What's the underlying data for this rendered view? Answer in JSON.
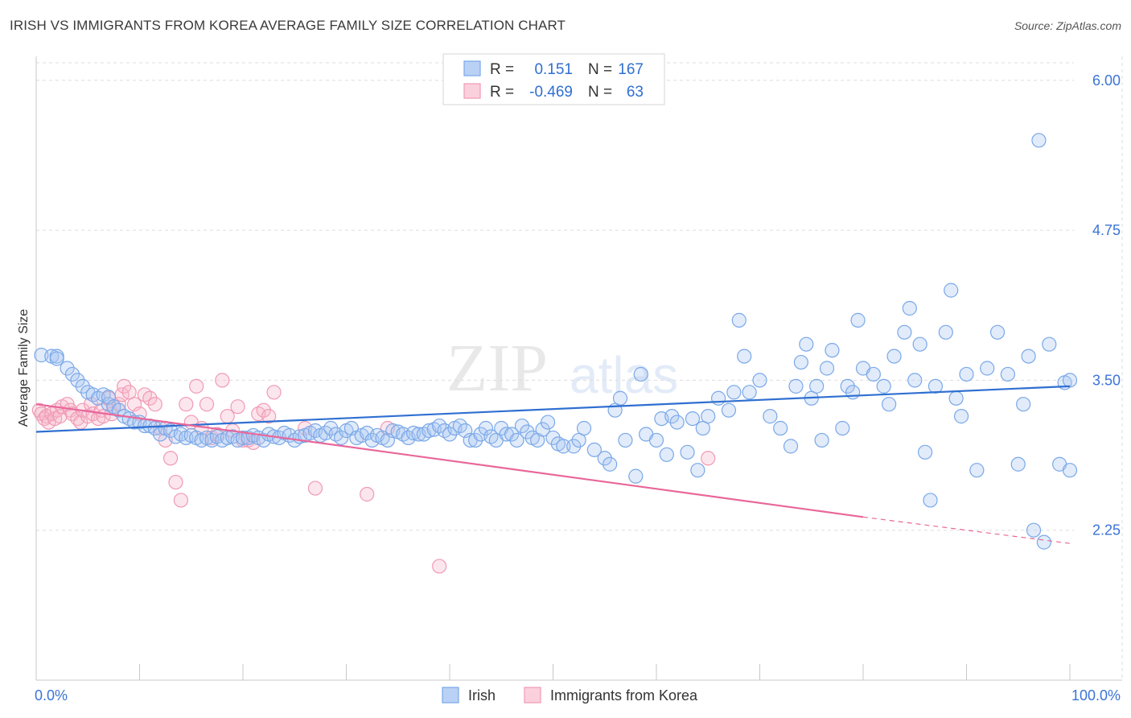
{
  "header": {
    "title": "IRISH VS IMMIGRANTS FROM KOREA AVERAGE FAMILY SIZE CORRELATION CHART",
    "source": "Source: ZipAtlas.com"
  },
  "watermark": {
    "zip": "ZIP",
    "atlas": "atlas"
  },
  "legend_stats": {
    "rows": [
      {
        "r_label": "R =",
        "r_value": "0.151",
        "n_label": "N =",
        "n_value": "167",
        "color": "#7aa8e8"
      },
      {
        "r_label": "R =",
        "r_value": "-0.469",
        "n_label": "N =",
        "n_value": "63",
        "color": "#f09ab5"
      }
    ]
  },
  "bottom_legend": {
    "irish": "Irish",
    "korea": "Immigrants from Korea"
  },
  "chart_data": {
    "type": "scatter",
    "title": "IRISH VS IMMIGRANTS FROM KOREA AVERAGE FAMILY SIZE CORRELATION CHART",
    "ylabel": "Average Family Size",
    "xlabel": "",
    "x_tick_labels": [
      "0.0%",
      "100.0%"
    ],
    "y_tick_labels": [
      "2.25",
      "3.50",
      "4.75",
      "6.00"
    ],
    "y_ticks": [
      2.25,
      3.5,
      4.75,
      6.0
    ],
    "xlim": [
      0,
      100
    ],
    "ylim": [
      1.0,
      6.2
    ],
    "grid": true,
    "legend_placement": "bottom-center",
    "series": [
      {
        "name": "Irish",
        "color": "#7aa8e8",
        "line_color": "#2f6fd1",
        "r": 0.151,
        "n": 167,
        "trend": {
          "x0": 0,
          "y0": 3.07,
          "x1": 100,
          "y1": 3.45
        },
        "points": [
          [
            0.5,
            3.71
          ],
          [
            1.5,
            3.7
          ],
          [
            2,
            3.7
          ],
          [
            2,
            3.68
          ],
          [
            3,
            3.6
          ],
          [
            3.5,
            3.55
          ],
          [
            4,
            3.5
          ],
          [
            4.5,
            3.45
          ],
          [
            5,
            3.4
          ],
          [
            5.5,
            3.38
          ],
          [
            6,
            3.35
          ],
          [
            6.5,
            3.38
          ],
          [
            7,
            3.3
          ],
          [
            7,
            3.36
          ],
          [
            7.5,
            3.28
          ],
          [
            8,
            3.25
          ],
          [
            8.5,
            3.2
          ],
          [
            9,
            3.18
          ],
          [
            9.5,
            3.15
          ],
          [
            10,
            3.15
          ],
          [
            10.5,
            3.12
          ],
          [
            11,
            3.12
          ],
          [
            11.5,
            3.1
          ],
          [
            12,
            3.05
          ],
          [
            12.5,
            3.1
          ],
          [
            13,
            3.08
          ],
          [
            13.5,
            3.03
          ],
          [
            14,
            3.05
          ],
          [
            14.5,
            3.02
          ],
          [
            15,
            3.04
          ],
          [
            15.5,
            3.02
          ],
          [
            16,
            3.0
          ],
          [
            16.5,
            3.02
          ],
          [
            17,
            3.0
          ],
          [
            17.5,
            3.03
          ],
          [
            18,
            3.0
          ],
          [
            18.5,
            3.02
          ],
          [
            19,
            3.03
          ],
          [
            19.5,
            3.0
          ],
          [
            20,
            3.02
          ],
          [
            20.5,
            3.02
          ],
          [
            21,
            3.04
          ],
          [
            21.5,
            3.02
          ],
          [
            22,
            3.0
          ],
          [
            22.5,
            3.05
          ],
          [
            23,
            3.03
          ],
          [
            23.5,
            3.02
          ],
          [
            24,
            3.06
          ],
          [
            24.5,
            3.04
          ],
          [
            25,
            3.0
          ],
          [
            25.5,
            3.03
          ],
          [
            26,
            3.04
          ],
          [
            26.5,
            3.06
          ],
          [
            27,
            3.08
          ],
          [
            27.5,
            3.04
          ],
          [
            28,
            3.06
          ],
          [
            28.5,
            3.1
          ],
          [
            29,
            3.05
          ],
          [
            29.5,
            3.02
          ],
          [
            30,
            3.08
          ],
          [
            30.5,
            3.1
          ],
          [
            31,
            3.02
          ],
          [
            31.5,
            3.04
          ],
          [
            32,
            3.06
          ],
          [
            32.5,
            3.0
          ],
          [
            33,
            3.04
          ],
          [
            33.5,
            3.02
          ],
          [
            34,
            3.0
          ],
          [
            34.5,
            3.08
          ],
          [
            35,
            3.07
          ],
          [
            35.5,
            3.05
          ],
          [
            36,
            3.02
          ],
          [
            36.5,
            3.06
          ],
          [
            37,
            3.05
          ],
          [
            37.5,
            3.05
          ],
          [
            38,
            3.08
          ],
          [
            38.5,
            3.09
          ],
          [
            39,
            3.12
          ],
          [
            39.5,
            3.08
          ],
          [
            40,
            3.05
          ],
          [
            40.5,
            3.1
          ],
          [
            41,
            3.12
          ],
          [
            41.5,
            3.08
          ],
          [
            42,
            3.0
          ],
          [
            42.5,
            3.0
          ],
          [
            43,
            3.05
          ],
          [
            43.5,
            3.1
          ],
          [
            44,
            3.03
          ],
          [
            44.5,
            3.0
          ],
          [
            45,
            3.1
          ],
          [
            45.5,
            3.05
          ],
          [
            46,
            3.05
          ],
          [
            46.5,
            3.0
          ],
          [
            47,
            3.12
          ],
          [
            47.5,
            3.07
          ],
          [
            48,
            3.02
          ],
          [
            48.5,
            3.0
          ],
          [
            49,
            3.09
          ],
          [
            49.5,
            3.15
          ],
          [
            50,
            3.02
          ],
          [
            50.5,
            2.97
          ],
          [
            51,
            2.95
          ],
          [
            52,
            2.95
          ],
          [
            52.5,
            3.0
          ],
          [
            53,
            3.1
          ],
          [
            54,
            2.92
          ],
          [
            55,
            2.85
          ],
          [
            55.5,
            2.8
          ],
          [
            56,
            3.25
          ],
          [
            56.5,
            3.35
          ],
          [
            57,
            3.0
          ],
          [
            58,
            2.7
          ],
          [
            58.5,
            3.55
          ],
          [
            59,
            3.05
          ],
          [
            60,
            3.0
          ],
          [
            60.5,
            3.18
          ],
          [
            61,
            2.88
          ],
          [
            61.5,
            3.2
          ],
          [
            62,
            3.15
          ],
          [
            63,
            2.9
          ],
          [
            63.5,
            3.18
          ],
          [
            64,
            2.75
          ],
          [
            64.5,
            3.1
          ],
          [
            65,
            3.2
          ],
          [
            66,
            3.35
          ],
          [
            67,
            3.25
          ],
          [
            67.5,
            3.4
          ],
          [
            68,
            4.0
          ],
          [
            68.5,
            3.7
          ],
          [
            69,
            3.4
          ],
          [
            70,
            3.5
          ],
          [
            71,
            3.2
          ],
          [
            72,
            3.1
          ],
          [
            73,
            2.95
          ],
          [
            73.5,
            3.45
          ],
          [
            74,
            3.65
          ],
          [
            74.5,
            3.8
          ],
          [
            75,
            3.35
          ],
          [
            75.5,
            3.45
          ],
          [
            76,
            3.0
          ],
          [
            76.5,
            3.6
          ],
          [
            77,
            3.75
          ],
          [
            78,
            3.1
          ],
          [
            78.5,
            3.45
          ],
          [
            79,
            3.4
          ],
          [
            79.5,
            4.0
          ],
          [
            80,
            3.6
          ],
          [
            81,
            3.55
          ],
          [
            82,
            3.45
          ],
          [
            82.5,
            3.3
          ],
          [
            83,
            3.7
          ],
          [
            84,
            3.9
          ],
          [
            84.5,
            4.1
          ],
          [
            85,
            3.5
          ],
          [
            85.5,
            3.8
          ],
          [
            86,
            2.9
          ],
          [
            86.5,
            2.5
          ],
          [
            87,
            3.45
          ],
          [
            88,
            3.9
          ],
          [
            88.5,
            4.25
          ],
          [
            89,
            3.35
          ],
          [
            89.5,
            3.2
          ],
          [
            90,
            3.55
          ],
          [
            91,
            2.75
          ],
          [
            92,
            3.6
          ],
          [
            93,
            3.9
          ],
          [
            94,
            3.55
          ],
          [
            95,
            2.8
          ],
          [
            95.5,
            3.3
          ],
          [
            96,
            3.7
          ],
          [
            96.5,
            2.25
          ],
          [
            97,
            5.5
          ],
          [
            97.5,
            2.15
          ],
          [
            98,
            3.8
          ],
          [
            99,
            2.8
          ],
          [
            99.5,
            3.48
          ],
          [
            100,
            3.5
          ],
          [
            100,
            2.75
          ]
        ]
      },
      {
        "name": "Immigrants from Korea",
        "color": "#f09ab5",
        "line_color": "#e8679a",
        "r": -0.469,
        "n": 63,
        "trend": {
          "x0": 0,
          "y0": 3.3,
          "x1": 80,
          "y1": 2.36,
          "dash_x1": 100,
          "dash_y1": 2.14
        },
        "points": [
          [
            0.3,
            3.25
          ],
          [
            0.5,
            3.22
          ],
          [
            0.8,
            3.18
          ],
          [
            1,
            3.2
          ],
          [
            1.2,
            3.15
          ],
          [
            1.5,
            3.22
          ],
          [
            1.8,
            3.18
          ],
          [
            2,
            3.25
          ],
          [
            2.3,
            3.2
          ],
          [
            2.5,
            3.28
          ],
          [
            3,
            3.3
          ],
          [
            3.3,
            3.25
          ],
          [
            3.5,
            3.22
          ],
          [
            4,
            3.18
          ],
          [
            4.3,
            3.15
          ],
          [
            4.5,
            3.25
          ],
          [
            5,
            3.2
          ],
          [
            5.3,
            3.3
          ],
          [
            5.5,
            3.22
          ],
          [
            6,
            3.18
          ],
          [
            6.3,
            3.25
          ],
          [
            6.5,
            3.2
          ],
          [
            7,
            3.35
          ],
          [
            7.3,
            3.22
          ],
          [
            7.5,
            3.28
          ],
          [
            8,
            3.3
          ],
          [
            8.3,
            3.38
          ],
          [
            8.5,
            3.45
          ],
          [
            9,
            3.4
          ],
          [
            9.5,
            3.3
          ],
          [
            10,
            3.22
          ],
          [
            10.5,
            3.38
          ],
          [
            11,
            3.35
          ],
          [
            11.5,
            3.3
          ],
          [
            12,
            3.1
          ],
          [
            12.5,
            3.0
          ],
          [
            13,
            2.85
          ],
          [
            13.5,
            2.65
          ],
          [
            14,
            2.5
          ],
          [
            14.5,
            3.3
          ],
          [
            15,
            3.15
          ],
          [
            15.5,
            3.45
          ],
          [
            16,
            3.1
          ],
          [
            16.5,
            3.3
          ],
          [
            17,
            3.02
          ],
          [
            17.5,
            3.05
          ],
          [
            18,
            3.5
          ],
          [
            18.5,
            3.2
          ],
          [
            19,
            3.08
          ],
          [
            19.5,
            3.28
          ],
          [
            20,
            3.0
          ],
          [
            20.5,
            3.0
          ],
          [
            21,
            2.98
          ],
          [
            21.5,
            3.22
          ],
          [
            22,
            3.25
          ],
          [
            22.5,
            3.2
          ],
          [
            23,
            3.4
          ],
          [
            26,
            3.1
          ],
          [
            27,
            2.6
          ],
          [
            32,
            2.55
          ],
          [
            34,
            3.1
          ],
          [
            39,
            1.95
          ],
          [
            65,
            2.85
          ]
        ]
      }
    ]
  }
}
